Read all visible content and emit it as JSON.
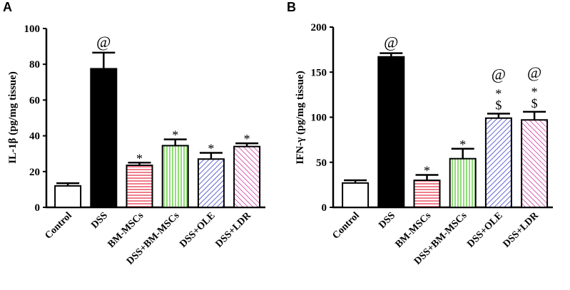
{
  "chart_data": [
    {
      "panel": "A",
      "type": "bar",
      "ylabel": "IL-1β (pg/mg tissue)",
      "xlabel": "",
      "ylim": [
        0,
        100
      ],
      "yticks": [
        0,
        20,
        40,
        60,
        80,
        100
      ],
      "categories": [
        "Control",
        "DSS",
        "BM-MSCs",
        "DSS+BM-MSCs",
        "DSS+OLE",
        "DSS+LDR"
      ],
      "values": [
        12,
        77.5,
        23.5,
        34.5,
        27,
        34
      ],
      "errors": [
        1.5,
        9,
        1.5,
        3.5,
        3.5,
        1.8
      ],
      "annotations": [
        [],
        [
          "@"
        ],
        [
          "*"
        ],
        [
          "*"
        ],
        [
          "*"
        ],
        [
          "*"
        ]
      ],
      "fills": [
        "white",
        "black",
        "red-horizontal",
        "green-vertical",
        "blue-diagonal",
        "magenta-diagonal"
      ]
    },
    {
      "panel": "B",
      "type": "bar",
      "ylabel": "IFN-γ (pg/mg tissue)",
      "xlabel": "",
      "ylim": [
        0,
        200
      ],
      "yticks": [
        0,
        50,
        100,
        150,
        200
      ],
      "categories": [
        "Control",
        "DSS",
        "BM-MSCs",
        "DSS+BM-MSCs",
        "DSS+OLE",
        "DSS+LDR"
      ],
      "values": [
        27,
        167,
        30,
        54,
        99,
        97
      ],
      "errors": [
        3,
        4,
        6,
        11,
        5,
        9
      ],
      "annotations": [
        [],
        [
          "@"
        ],
        [
          "*"
        ],
        [
          "*"
        ],
        [
          "$",
          "*",
          "@"
        ],
        [
          "$",
          "*",
          "@"
        ]
      ],
      "fills": [
        "white",
        "black",
        "red-horizontal",
        "green-vertical",
        "blue-diagonal",
        "magenta-diagonal"
      ]
    }
  ],
  "colors": {
    "axis": "#000000",
    "red": "#e8485a",
    "green": "#5fcf3c",
    "blue": "#3a3fc8",
    "magenta": "#c8399a"
  }
}
